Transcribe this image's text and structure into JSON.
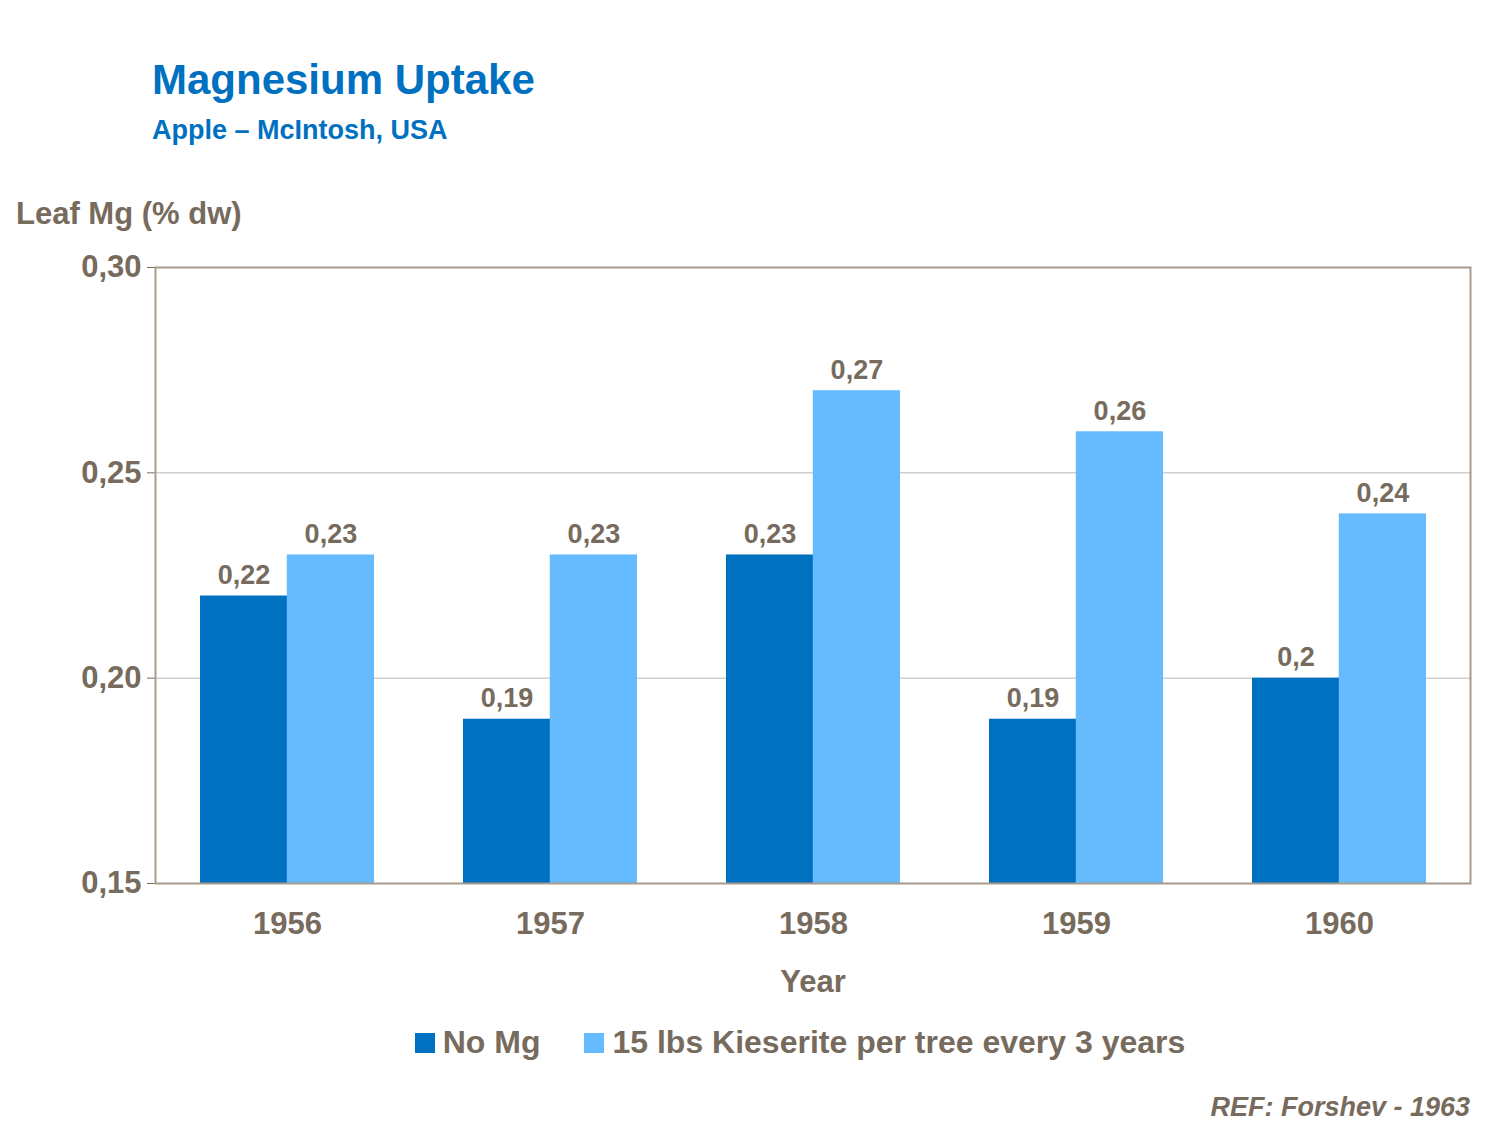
{
  "chart_data": {
    "type": "bar",
    "title": "Magnesium Uptake",
    "subtitle": "Apple – McIntosh, USA",
    "y_label": "Leaf Mg (% dw)",
    "x_label": "Year",
    "caption": "REF: Forshev - 1963",
    "categories": [
      "1956",
      "1957",
      "1958",
      "1959",
      "1960"
    ],
    "series": [
      {
        "name": "No Mg",
        "color": "#0070c0",
        "values": [
          0.22,
          0.19,
          0.23,
          0.19,
          0.2
        ],
        "value_labels": [
          "0,22",
          "0,19",
          "0,23",
          "0,19",
          "0,2"
        ]
      },
      {
        "name": "15 lbs Kieserite per tree every 3 years",
        "color": "#66bbff",
        "values": [
          0.23,
          0.23,
          0.27,
          0.26,
          0.24
        ],
        "value_labels": [
          "0,23",
          "0,23",
          "0,27",
          "0,26",
          "0,24"
        ]
      }
    ],
    "ylim": [
      0.15,
      0.3
    ],
    "yticks": [
      {
        "value": 0.15,
        "label": "0,15"
      },
      {
        "value": 0.2,
        "label": "0,20"
      },
      {
        "value": 0.25,
        "label": "0,25"
      },
      {
        "value": 0.3,
        "label": "0,30"
      }
    ],
    "grid": true,
    "legend": "bottom",
    "data_labels": true
  }
}
